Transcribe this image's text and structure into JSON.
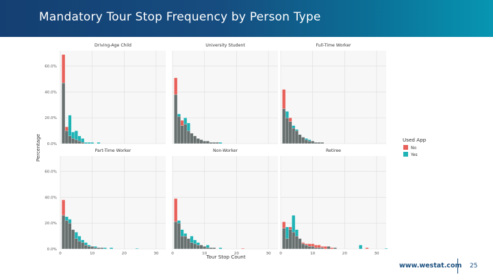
{
  "header": {
    "title": "Mandatory Tour Stop Frequency by Person Type"
  },
  "footer": {
    "url": "www.westat.com",
    "page_number": "25"
  },
  "colors": {
    "no": "#e8605a",
    "yes": "#1fb3b6",
    "overlap": "#67706f",
    "panel_bg": "#f7f7f7",
    "grid": "#dcdcdc"
  },
  "chart_data": {
    "type": "bar",
    "layout": "facet_2x3",
    "xlabel": "Tour Stop Count",
    "ylabel": "Percentage",
    "xlim": [
      0,
      33
    ],
    "ylim": [
      0,
      0.72
    ],
    "x_ticks": [
      0,
      10,
      20,
      30
    ],
    "x_tick_labels": [
      "0",
      "10",
      "20",
      "30"
    ],
    "y_ticks": [
      0,
      0.2,
      0.4,
      0.6
    ],
    "y_tick_labels": [
      "0.0%",
      "20.0%",
      "40.0%",
      "60.0%"
    ],
    "bin_width": 1,
    "legend": {
      "title": "Used App",
      "entries": [
        "No",
        "Yes"
      ],
      "position": "right"
    },
    "panels": [
      {
        "title": "Driving-Age Child",
        "series": [
          {
            "name": "No",
            "x": [
              1,
              2,
              3,
              4,
              5,
              6,
              7
            ],
            "values": [
              0.69,
              0.13,
              0.06,
              0.04,
              0.03,
              0.02,
              0.01
            ]
          },
          {
            "name": "Yes",
            "x": [
              1,
              2,
              3,
              4,
              5,
              6,
              7,
              8,
              9,
              10,
              11,
              12,
              13
            ],
            "values": [
              0.47,
              0.1,
              0.22,
              0.09,
              0.1,
              0.06,
              0.04,
              0.01,
              0.01,
              0.01,
              0.0,
              0.01,
              0.0
            ]
          }
        ]
      },
      {
        "title": "University Student",
        "series": [
          {
            "name": "No",
            "x": [
              1,
              2,
              3,
              4,
              5,
              6,
              7,
              8,
              9,
              10,
              11,
              12,
              13,
              14,
              15,
              16
            ],
            "values": [
              0.51,
              0.21,
              0.18,
              0.15,
              0.1,
              0.08,
              0.06,
              0.04,
              0.03,
              0.02,
              0.02,
              0.01,
              0.01,
              0.01,
              0.0,
              0.0
            ]
          },
          {
            "name": "Yes",
            "x": [
              1,
              2,
              3,
              4,
              5,
              6,
              7,
              8,
              9,
              10,
              11,
              12,
              13,
              14,
              15,
              16
            ],
            "values": [
              0.38,
              0.23,
              0.14,
              0.2,
              0.16,
              0.08,
              0.06,
              0.04,
              0.03,
              0.02,
              0.02,
              0.01,
              0.01,
              0.01,
              0.01,
              0.0
            ]
          }
        ]
      },
      {
        "title": "Full-Time Worker",
        "series": [
          {
            "name": "No",
            "x": [
              1,
              2,
              3,
              4,
              5,
              6,
              7,
              8,
              9,
              10,
              11,
              12,
              13,
              14,
              15
            ],
            "values": [
              0.42,
              0.2,
              0.2,
              0.12,
              0.1,
              0.07,
              0.05,
              0.03,
              0.02,
              0.02,
              0.01,
              0.01,
              0.01,
              0.0,
              0.0
            ]
          },
          {
            "name": "Yes",
            "x": [
              1,
              2,
              3,
              4,
              5,
              6,
              7,
              8,
              9,
              10,
              11,
              12,
              13,
              14,
              15
            ],
            "values": [
              0.27,
              0.25,
              0.17,
              0.14,
              0.11,
              0.07,
              0.05,
              0.04,
              0.03,
              0.02,
              0.01,
              0.01,
              0.01,
              0.0,
              0.0
            ]
          }
        ]
      },
      {
        "title": "Part-Time Worker",
        "series": [
          {
            "name": "No",
            "x": [
              1,
              2,
              3,
              4,
              5,
              6,
              7,
              8,
              9,
              10,
              11,
              12,
              13,
              14,
              15,
              16
            ],
            "values": [
              0.38,
              0.22,
              0.2,
              0.15,
              0.08,
              0.06,
              0.05,
              0.03,
              0.02,
              0.02,
              0.01,
              0.01,
              0.01,
              0.0,
              0.0,
              0.0
            ]
          },
          {
            "name": "Yes",
            "x": [
              1,
              2,
              3,
              4,
              5,
              6,
              7,
              8,
              9,
              10,
              11,
              12,
              13,
              14,
              15,
              16,
              17,
              18,
              19,
              20,
              21,
              22,
              23,
              24
            ],
            "values": [
              0.26,
              0.25,
              0.23,
              0.15,
              0.13,
              0.1,
              0.07,
              0.05,
              0.03,
              0.02,
              0.02,
              0.01,
              0.01,
              0.01,
              0.0,
              0.01,
              0.0,
              0.0,
              0.0,
              0.0,
              0.0,
              0.0,
              0.0,
              0.005
            ]
          }
        ]
      },
      {
        "title": "Non-Worker",
        "series": [
          {
            "name": "No",
            "x": [
              1,
              2,
              3,
              4,
              5,
              6,
              7,
              8,
              9,
              10,
              11,
              12,
              13,
              14,
              15,
              16,
              17,
              18,
              19,
              20,
              21,
              22
            ],
            "values": [
              0.39,
              0.2,
              0.1,
              0.1,
              0.08,
              0.05,
              0.04,
              0.03,
              0.03,
              0.02,
              0.01,
              0.01,
              0.01,
              0.0,
              0.0,
              0.0,
              0.0,
              0.0,
              0.0,
              0.0,
              0.0,
              0.005
            ]
          },
          {
            "name": "Yes",
            "x": [
              1,
              2,
              3,
              4,
              5,
              6,
              7,
              8,
              9,
              10,
              11,
              12,
              13,
              14,
              15,
              16,
              17,
              18,
              19,
              20,
              21,
              22
            ],
            "values": [
              0.21,
              0.22,
              0.15,
              0.12,
              0.08,
              0.1,
              0.07,
              0.05,
              0.03,
              0.02,
              0.03,
              0.01,
              0.01,
              0.0,
              0.01,
              0.0,
              0.0,
              0.0,
              0.0,
              0.0,
              0.0,
              0.0
            ]
          }
        ]
      },
      {
        "title": "Retiree",
        "series": [
          {
            "name": "No",
            "x": [
              1,
              2,
              3,
              4,
              5,
              6,
              7,
              8,
              9,
              10,
              11,
              12,
              13,
              14,
              15,
              16,
              17,
              18,
              19,
              20,
              21,
              22,
              23,
              24,
              25,
              26,
              27
            ],
            "values": [
              0.21,
              0.08,
              0.17,
              0.13,
              0.1,
              0.08,
              0.05,
              0.04,
              0.04,
              0.04,
              0.03,
              0.03,
              0.02,
              0.02,
              0.02,
              0.01,
              0.01,
              0.0,
              0.0,
              0.0,
              0.0,
              0.0,
              0.0,
              0.0,
              0.0,
              0.0,
              0.01
            ]
          },
          {
            "name": "Yes",
            "x": [
              1,
              2,
              3,
              4,
              5,
              6,
              7,
              8,
              9,
              10,
              11,
              12,
              13,
              14,
              15,
              16,
              17,
              18,
              19,
              20,
              21,
              22,
              23,
              24,
              25,
              26,
              27,
              28,
              29,
              30,
              31,
              32,
              33
            ],
            "values": [
              0.16,
              0.17,
              0.15,
              0.26,
              0.15,
              0.08,
              0.04,
              0.03,
              0.02,
              0.02,
              0.01,
              0.01,
              0.01,
              0.0,
              0.02,
              0.0,
              0.01,
              0.0,
              0.0,
              0.0,
              0.0,
              0.0,
              0.0,
              0.0,
              0.03,
              0.0,
              0.0,
              0.0,
              0.0,
              0.0,
              0.0,
              0.0,
              0.005
            ]
          }
        ]
      }
    ]
  }
}
